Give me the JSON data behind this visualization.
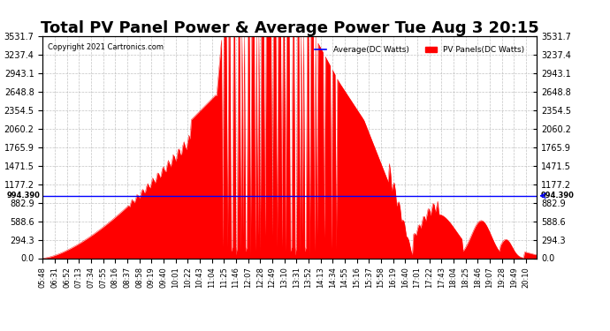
{
  "title": "Total PV Panel Power & Average Power Tue Aug 3 20:15",
  "copyright": "Copyright 2021 Cartronics.com",
  "legend_avg": "Average(DC Watts)",
  "legend_pv": "PV Panels(DC Watts)",
  "ymax": 3531.7,
  "ymin": 0.0,
  "yticks": [
    0.0,
    294.3,
    588.6,
    882.9,
    1177.2,
    1471.5,
    1765.9,
    2060.2,
    2354.5,
    2648.8,
    2943.1,
    3237.4,
    3531.7
  ],
  "avg_value": 994.39,
  "avg_label": "994.390",
  "pv_color": "#ff0000",
  "avg_color": "#0000ff",
  "background_color": "#ffffff",
  "grid_color": "#aaaaaa",
  "xtick_labels": [
    "05:48",
    "06:31",
    "06:52",
    "07:13",
    "07:34",
    "07:55",
    "08:16",
    "08:37",
    "08:58",
    "09:19",
    "09:40",
    "10:01",
    "10:22",
    "10:43",
    "11:04",
    "11:25",
    "11:46",
    "12:07",
    "12:28",
    "12:49",
    "13:10",
    "13:31",
    "13:52",
    "14:13",
    "14:34",
    "14:55",
    "15:16",
    "15:37",
    "15:58",
    "16:19",
    "16:40",
    "17:01",
    "17:22",
    "17:43",
    "18:04",
    "18:25",
    "18:46",
    "19:07",
    "19:28",
    "19:49",
    "20:10"
  ],
  "title_fontsize": 13,
  "label_fontsize": 7,
  "tick_fontsize": 7
}
